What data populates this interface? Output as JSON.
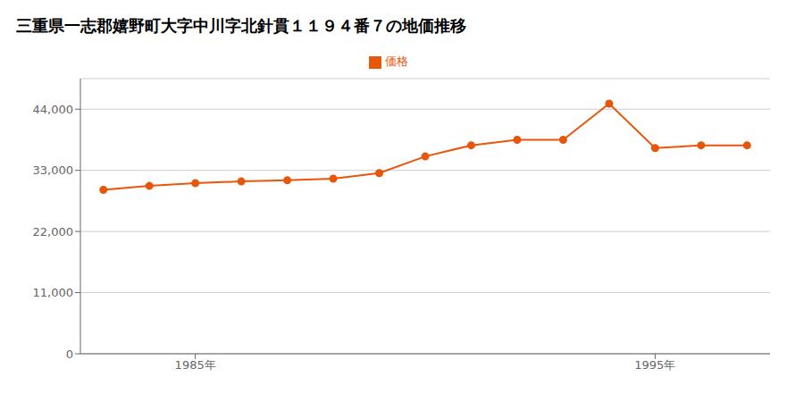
{
  "chart_data": {
    "type": "line",
    "title": "三重県一志郡嬉野町大字中川字北針貫１１９４番７の地価推移",
    "x": [
      1983,
      1984,
      1985,
      1986,
      1987,
      1988,
      1989,
      1990,
      1991,
      1992,
      1993,
      1994,
      1995,
      1996,
      1997
    ],
    "series": [
      {
        "name": "価格",
        "color": "#E8560A",
        "values": [
          29500,
          30200,
          30700,
          31000,
          31200,
          31500,
          32500,
          35500,
          37500,
          38500,
          38500,
          45000,
          37000,
          37500,
          37500
        ]
      }
    ],
    "xlim": [
      1982.5,
      1997.5
    ],
    "xticks": [
      {
        "value": 1985,
        "label": "1985年"
      },
      {
        "value": 1995,
        "label": "1995年"
      }
    ],
    "ylim": [
      0,
      49500
    ],
    "yticks": [
      0,
      {
        "value": 11000,
        "label": "11,000"
      },
      {
        "value": 22000,
        "label": "22,000"
      },
      {
        "value": 33000,
        "label": "33,000"
      },
      {
        "value": 44000,
        "label": "44,000"
      }
    ],
    "grid": "y",
    "legend": "top",
    "marker": "circle"
  }
}
